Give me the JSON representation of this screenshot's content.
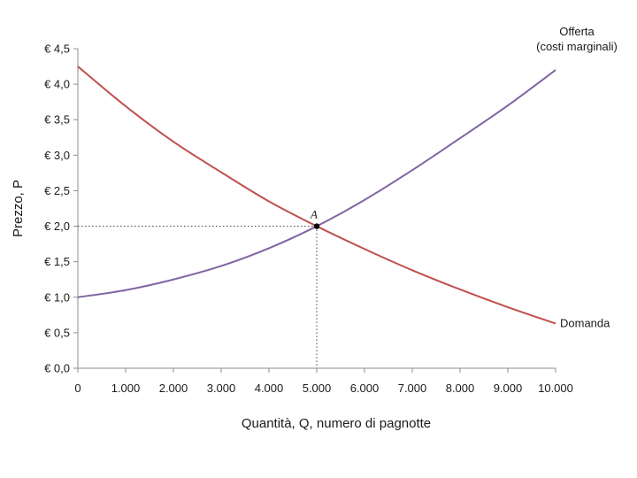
{
  "chart_data": {
    "type": "line",
    "xlabel": "Quantità, Q, numero di pagnotte",
    "ylabel": "Prezzo, P",
    "xlim": [
      0,
      10000
    ],
    "ylim": [
      0,
      4.5
    ],
    "x_ticks": [
      0,
      1000,
      2000,
      3000,
      4000,
      5000,
      6000,
      7000,
      8000,
      9000,
      10000
    ],
    "x_tick_labels": [
      "0",
      "1.000",
      "2.000",
      "3.000",
      "4.000",
      "5.000",
      "6.000",
      "7.000",
      "8.000",
      "9.000",
      "10.000"
    ],
    "y_ticks": [
      0,
      0.5,
      1,
      1.5,
      2,
      2.5,
      3,
      3.5,
      4,
      4.5
    ],
    "y_tick_labels": [
      "€ 0,0",
      "€ 0,5",
      "€ 1,0",
      "€ 1,5",
      "€ 2,0",
      "€ 2,5",
      "€ 3,0",
      "€ 3,5",
      "€ 4,0",
      "€ 4,5"
    ],
    "grid": false,
    "series": [
      {
        "name": "Domanda",
        "color": "#c0504d",
        "x": [
          0,
          1000,
          2000,
          3000,
          4000,
          5000,
          6000,
          7000,
          8000,
          9000,
          10000
        ],
        "y": [
          4.25,
          3.69,
          3.19,
          2.76,
          2.35,
          2.0,
          1.68,
          1.38,
          1.11,
          0.86,
          0.63
        ]
      },
      {
        "name": "Offerta",
        "label_lines": [
          "Offerta",
          "(costi marginali)"
        ],
        "color": "#8064a2",
        "x": [
          0,
          1000,
          2000,
          3000,
          4000,
          5000,
          6000,
          7000,
          8000,
          9000,
          10000
        ],
        "y": [
          1.0,
          1.1,
          1.25,
          1.44,
          1.69,
          2.0,
          2.37,
          2.79,
          3.24,
          3.7,
          4.2
        ]
      }
    ],
    "equilibrium": {
      "label": "A",
      "x": 5000,
      "y": 2.0
    }
  }
}
